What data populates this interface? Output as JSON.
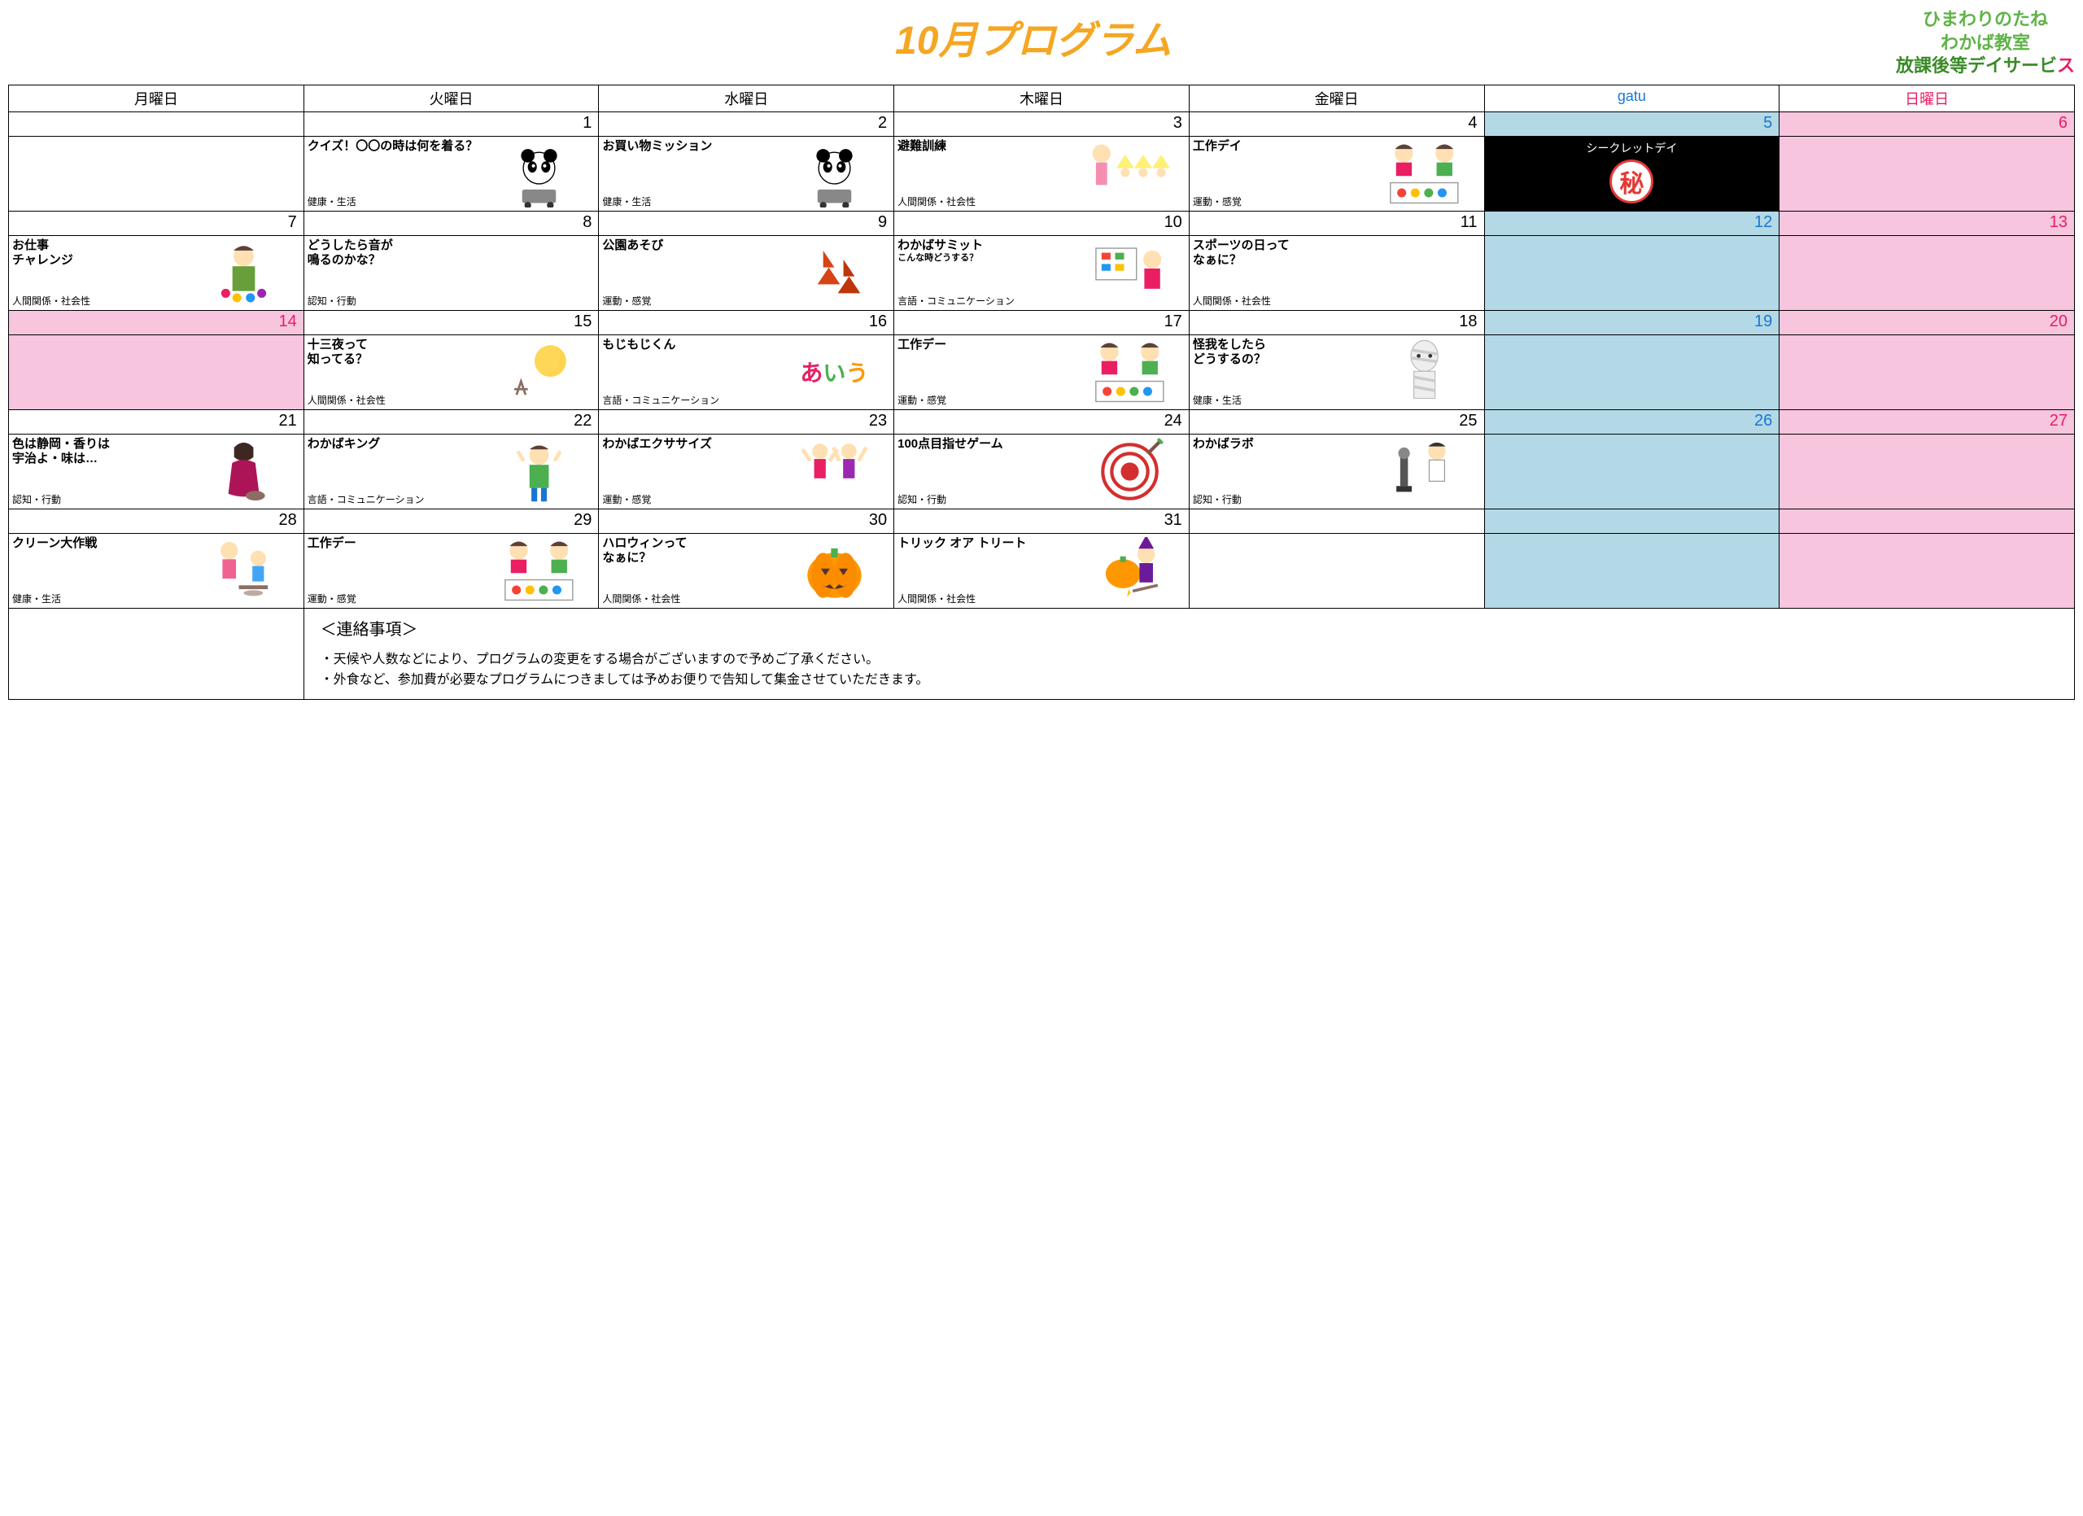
{
  "title": "10月プログラム",
  "subtitle": {
    "line1": "ひまわりのたね",
    "line2": "わかば教室",
    "line3": "放課後等デイサービ"
  },
  "headers": [
    "月曜日",
    "火曜日",
    "水曜日",
    "木曜日",
    "金曜日",
    "gatu",
    "日曜日"
  ],
  "colors": {
    "title": "#f5a623",
    "subtitle_green": "#5fb346",
    "subtitle_darkgreen": "#3a8a27",
    "sat_bg": "#b3d9e6",
    "sat_text": "#1976d2",
    "sun_bg": "#f7c5de",
    "sun_text": "#e91e63",
    "secret_bg": "#000000",
    "secret_red": "#e53935"
  },
  "weeks": [
    {
      "days": [
        {
          "num": "",
          "ev": null
        },
        {
          "num": "1",
          "ev": {
            "title": "クイズ！〇〇の時は何を着る？",
            "cat": "健康・生活",
            "icon": "panda",
            "wide": true
          }
        },
        {
          "num": "2",
          "ev": {
            "title": "お買い物ミッション",
            "cat": "健康・生活",
            "icon": "panda"
          }
        },
        {
          "num": "3",
          "ev": {
            "title": "避難訓練",
            "cat": "人間関係・社会性",
            "icon": "evac"
          }
        },
        {
          "num": "4",
          "ev": {
            "title": "工作デイ",
            "cat": "運動・感覚",
            "icon": "craft"
          }
        },
        {
          "num": "5",
          "sat": true,
          "ev": {
            "secret": true,
            "title": "シークレットデイ",
            "badge": "秘"
          }
        },
        {
          "num": "6",
          "sun": true,
          "ev": null
        }
      ]
    },
    {
      "days": [
        {
          "num": "7",
          "ev": {
            "title": "お仕事\nチャレンジ",
            "cat": "人間関係・社会性",
            "icon": "work"
          }
        },
        {
          "num": "8",
          "ev": {
            "title": "どうしたら音が\n鳴るのかな？",
            "cat": "認知・行動",
            "icon": ""
          }
        },
        {
          "num": "9",
          "ev": {
            "title": "公園あそび",
            "cat": "運動・感覚",
            "icon": "leaves"
          }
        },
        {
          "num": "10",
          "ev": {
            "title": "わかばサミット",
            "sub": "こんな時どうする？",
            "cat": "言語・コミュニケーション",
            "icon": "meeting"
          }
        },
        {
          "num": "11",
          "ev": {
            "title": "スポーツの日って\nなぁに？",
            "cat": "人間関係・社会性",
            "icon": ""
          }
        },
        {
          "num": "12",
          "sat": true,
          "ev": null
        },
        {
          "num": "13",
          "sun": true,
          "ev": null
        }
      ]
    },
    {
      "days": [
        {
          "num": "14",
          "holiday": true,
          "ev": null
        },
        {
          "num": "15",
          "ev": {
            "title": "十三夜って\n知ってる？",
            "cat": "人間関係・社会性",
            "icon": "moon"
          }
        },
        {
          "num": "16",
          "ev": {
            "title": "もじもじくん",
            "cat": "言語・コミュニケーション",
            "icon": "abc"
          }
        },
        {
          "num": "17",
          "ev": {
            "title": "工作デー",
            "cat": "運動・感覚",
            "icon": "craft"
          }
        },
        {
          "num": "18",
          "ev": {
            "title": "怪我をしたら\nどうするの？",
            "cat": "健康・生活",
            "icon": "mummy"
          }
        },
        {
          "num": "19",
          "sat": true,
          "ev": null
        },
        {
          "num": "20",
          "sun": true,
          "ev": null
        }
      ]
    },
    {
      "days": [
        {
          "num": "21",
          "ev": {
            "title": "色は静岡・香りは\n宇治よ・味は…",
            "cat": "認知・行動",
            "icon": "tea"
          }
        },
        {
          "num": "22",
          "ev": {
            "title": "わかばキング",
            "cat": "言語・コミュニケーション",
            "icon": "king"
          }
        },
        {
          "num": "23",
          "ev": {
            "title": "わかばエクササイズ",
            "cat": "運動・感覚",
            "icon": "exercise"
          }
        },
        {
          "num": "24",
          "ev": {
            "title": "100点目指せゲーム",
            "cat": "認知・行動",
            "icon": "target"
          }
        },
        {
          "num": "25",
          "ev": {
            "title": "わかばラボ",
            "cat": "認知・行動",
            "icon": "lab"
          }
        },
        {
          "num": "26",
          "sat": true,
          "ev": null
        },
        {
          "num": "27",
          "sun": true,
          "ev": null
        }
      ]
    },
    {
      "days": [
        {
          "num": "28",
          "ev": {
            "title": "クリーン大作戦",
            "cat": "健康・生活",
            "icon": "clean"
          }
        },
        {
          "num": "29",
          "ev": {
            "title": "工作デー",
            "cat": "運動・感覚",
            "icon": "craft"
          }
        },
        {
          "num": "30",
          "ev": {
            "title": "ハロウィンって\nなぁに？",
            "cat": "人間関係・社会性",
            "icon": "pumpkin"
          }
        },
        {
          "num": "31",
          "ev": {
            "title": "トリック オア トリート",
            "cat": "人間関係・社会性",
            "icon": "witch"
          }
        },
        {
          "num": "",
          "ev": null
        },
        {
          "num": "",
          "sat": true,
          "ev": null
        },
        {
          "num": "",
          "sun": true,
          "ev": null
        }
      ]
    }
  ],
  "notes": {
    "title": "＜連絡事項＞",
    "items": [
      "・天候や人数などにより、プログラムの変更をする場合がございますので予めご了承ください。",
      "・外食など、参加費が必要なプログラムにつきましては予めお便りで告知して集金させていただきます。"
    ]
  }
}
